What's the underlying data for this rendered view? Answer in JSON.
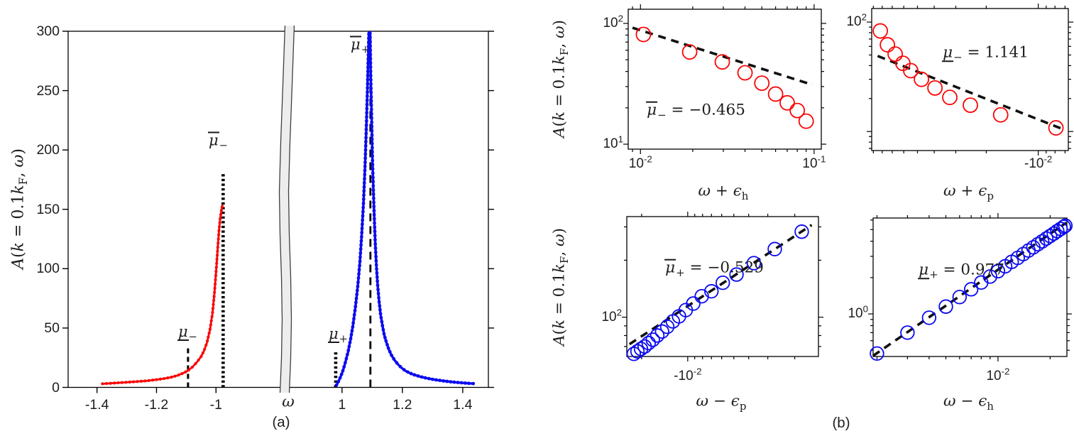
{
  "colors": {
    "background": "#ffffff",
    "axis": "#000000",
    "text": "#1e1e1e",
    "red_series": "#fa0505",
    "blue_series": "#0b0bf0",
    "fit_line": "#111111",
    "break_band_fill": "#ededed",
    "break_band_edge": "#3f3f3f"
  },
  "panel_labels": {
    "a": "(a)",
    "b": "(b)"
  },
  "chart_data": [
    {
      "id": "a-spectral-function",
      "type": "line",
      "title": "",
      "xlabel": "*ω*",
      "ylabel": "*A*(*k* = 0.1*k*_{F}, *ω*)",
      "ylim": [
        0,
        300
      ],
      "yticks": [
        {
          "v": 0,
          "label": "0"
        },
        {
          "v": 50,
          "label": "50"
        },
        {
          "v": 100,
          "label": "100"
        },
        {
          "v": 150,
          "label": "150"
        },
        {
          "v": 200,
          "label": "200"
        },
        {
          "v": 250,
          "label": "250"
        },
        {
          "v": 300,
          "label": "300"
        }
      ],
      "axis_break": true,
      "xlim_left": [
        -1.497,
        -0.774
      ],
      "xlim_right": [
        0.838,
        1.485
      ],
      "xticks": [
        {
          "v": -1.4,
          "label": "-1.4"
        },
        {
          "v": -1.2,
          "label": "-1.2"
        },
        {
          "v": -1.0,
          "label": "-1"
        },
        {
          "v": 1.0,
          "label": "1"
        },
        {
          "v": 1.2,
          "label": "1.2"
        },
        {
          "v": 1.4,
          "label": "1.4"
        }
      ],
      "grid": false,
      "series": [
        {
          "name": "hole-side-red",
          "color": "red_series",
          "points": [
            [
              -1.386,
              3
            ],
            [
              -1.35,
              3.5
            ],
            [
              -1.32,
              4
            ],
            [
              -1.29,
              4.5
            ],
            [
              -1.26,
              5
            ],
            [
              -1.23,
              5.6
            ],
            [
              -1.2,
              6.5
            ],
            [
              -1.17,
              7.6
            ],
            [
              -1.15,
              8.6
            ],
            [
              -1.13,
              10
            ],
            [
              -1.11,
              12
            ],
            [
              -1.095,
              14
            ],
            [
              -1.08,
              17
            ],
            [
              -1.065,
              21
            ],
            [
              -1.05,
              26
            ],
            [
              -1.04,
              31
            ],
            [
              -1.03,
              38
            ],
            [
              -1.02,
              49
            ],
            [
              -1.012,
              62
            ],
            [
              -1.005,
              80
            ],
            [
              -0.999,
              100
            ],
            [
              -0.994,
              118
            ],
            [
              -0.99,
              132
            ],
            [
              -0.986,
              142
            ],
            [
              -0.982,
              149
            ],
            [
              -0.978,
              154
            ]
          ]
        },
        {
          "name": "particle-side-blue",
          "color": "blue_series",
          "points": [
            [
              0.979,
              1
            ],
            [
              0.984,
              3
            ],
            [
              0.99,
              6
            ],
            [
              0.997,
              10
            ],
            [
              1.004,
              15
            ],
            [
              1.012,
              22
            ],
            [
              1.02,
              30
            ],
            [
              1.028,
              40
            ],
            [
              1.036,
              52
            ],
            [
              1.044,
              67
            ],
            [
              1.052,
              85
            ],
            [
              1.059,
              105
            ],
            [
              1.065,
              128
            ],
            [
              1.071,
              155
            ],
            [
              1.076,
              185
            ],
            [
              1.08,
              215
            ],
            [
              1.084,
              250
            ],
            [
              1.087,
              280
            ],
            [
              1.089,
              300
            ],
            [
              1.0905,
              310
            ],
            [
              1.092,
              310
            ],
            [
              1.0935,
              290
            ],
            [
              1.095,
              265
            ],
            [
              1.097,
              240
            ],
            [
              1.099,
              215
            ],
            [
              1.101,
              190
            ],
            [
              1.104,
              165
            ],
            [
              1.107,
              142
            ],
            [
              1.11,
              122
            ],
            [
              1.114,
              102
            ],
            [
              1.118,
              86
            ],
            [
              1.123,
              72
            ],
            [
              1.128,
              61
            ],
            [
              1.134,
              52
            ],
            [
              1.14,
              44
            ],
            [
              1.147,
              38
            ],
            [
              1.155,
              32
            ],
            [
              1.164,
              27
            ],
            [
              1.174,
              23
            ],
            [
              1.185,
              19.5
            ],
            [
              1.197,
              16.5
            ],
            [
              1.21,
              14
            ],
            [
              1.225,
              12
            ],
            [
              1.24,
              10.5
            ],
            [
              1.26,
              9
            ],
            [
              1.28,
              7.8
            ],
            [
              1.3,
              6.8
            ],
            [
              1.32,
              6.0
            ],
            [
              1.34,
              5.3
            ],
            [
              1.36,
              4.7
            ],
            [
              1.38,
              4.2
            ],
            [
              1.4,
              3.8
            ],
            [
              1.42,
              3.4
            ],
            [
              1.435,
              3.2
            ]
          ]
        }
      ],
      "vlines": [
        {
          "id": "mu-under-minus",
          "label": "u{*μ*}_{−}",
          "x": -1.094,
          "top": 33,
          "style": "dashed-short"
        },
        {
          "id": "mu-over-minus",
          "label": "o{*μ*}_{−}",
          "x": -0.976,
          "top": 180,
          "style": "dotted"
        },
        {
          "id": "mu-under-plus",
          "label": "u{*μ*}_{+}",
          "x": 0.979,
          "top": 30,
          "style": "dotted"
        },
        {
          "id": "mu-over-plus",
          "label": "o{*μ*}_{+}",
          "x": 1.094,
          "top": 300,
          "style": "dashed-tall"
        }
      ]
    },
    {
      "id": "b-top-left",
      "type": "scatter",
      "xscale": "log",
      "yscale": "log",
      "xlabel": "*ω* + *ϵ*_{h}",
      "ylabel": "*A*(*k* = 0.1*k*_{F}, *ω*)",
      "xlim": [
        0.0085,
        0.11
      ],
      "ylim": [
        9.1,
        131
      ],
      "xticks": [
        {
          "v": 0.01,
          "label": "10^{-2}"
        },
        {
          "v": 0.1,
          "label": "10^{-1}"
        }
      ],
      "yticks": [
        {
          "v": 10,
          "label": "10^{1}"
        },
        {
          "v": 100,
          "label": "10^{2}"
        }
      ],
      "marker": "open-circle",
      "marker_color": "red_series",
      "points": [
        [
          0.0104,
          81
        ],
        [
          0.0192,
          58
        ],
        [
          0.0296,
          48
        ],
        [
          0.04,
          39
        ],
        [
          0.05,
          32
        ],
        [
          0.06,
          26
        ],
        [
          0.07,
          22
        ],
        [
          0.08,
          19
        ],
        [
          0.09,
          15.5
        ]
      ],
      "fit_line": {
        "from": [
          0.009,
          92
        ],
        "to": [
          0.098,
          31
        ]
      },
      "annotation": "o{*μ*}_{−} = −0.465"
    },
    {
      "id": "b-top-right",
      "type": "scatter",
      "xscale": "negative-log",
      "yscale": "log",
      "xlabel": "*ω* + *ϵ*_{p}",
      "xlim": [
        -0.092,
        -0.0067
      ],
      "ylim": [
        6.7,
        133
      ],
      "xticks": [
        {
          "v": -0.01,
          "label": "-10^{-2}"
        }
      ],
      "yticks": [
        {
          "v": 100,
          "label": "10^{2}"
        }
      ],
      "marker": "open-circle",
      "marker_color": "red_series",
      "points": [
        [
          -0.082,
          83
        ],
        [
          -0.0746,
          62
        ],
        [
          -0.0673,
          51
        ],
        [
          -0.0607,
          42
        ],
        [
          -0.0547,
          36
        ],
        [
          -0.0474,
          30
        ],
        [
          -0.0396,
          25
        ],
        [
          -0.0325,
          20.5
        ],
        [
          -0.0247,
          17.4
        ],
        [
          -0.0165,
          14.2
        ],
        [
          -0.0079,
          10.8
        ]
      ],
      "fit_line": {
        "from": [
          -0.085,
          49
        ],
        "to": [
          -0.0072,
          10.5
        ]
      },
      "annotation": "u{*μ*}_{−} = 1.141"
    },
    {
      "id": "b-bottom-left",
      "type": "scatter",
      "xscale": "negative-log",
      "yscale": "log",
      "xlabel": "*ω* − *ϵ*_{p}",
      "ylabel": "*A*(*k* = 0.1*k*_{F}, *ω*)",
      "xlim": [
        -0.025,
        -0.0014
      ],
      "ylim": [
        62,
        340
      ],
      "xticks": [
        {
          "v": -0.01,
          "label": "-10^{-2}"
        }
      ],
      "yticks": [
        {
          "v": 100,
          "label": "10^{2}"
        }
      ],
      "marker": "open-circle",
      "marker_color": "blue_series",
      "points": [
        [
          -0.0225,
          64
        ],
        [
          -0.0213,
          66
        ],
        [
          -0.0202,
          68
        ],
        [
          -0.0191,
          70
        ],
        [
          -0.018,
          73
        ],
        [
          -0.0169,
          76
        ],
        [
          -0.0158,
          80
        ],
        [
          -0.0147,
          84
        ],
        [
          -0.0136,
          89
        ],
        [
          -0.0125,
          95
        ],
        [
          -0.0114,
          101
        ],
        [
          -0.0103,
          109
        ],
        [
          -0.0092,
          118
        ],
        [
          -0.0081,
          129
        ],
        [
          -0.007,
          137
        ],
        [
          -0.0059,
          152
        ],
        [
          -0.0048,
          168
        ],
        [
          -0.0037,
          193
        ],
        [
          -0.0027,
          229
        ],
        [
          -0.0018,
          283
        ]
      ],
      "fit_line": {
        "from": [
          -0.024,
          72
        ],
        "to": [
          -0.00155,
          307
        ]
      },
      "annotation": "o{*μ*}_{+} = −0.529"
    },
    {
      "id": "b-bottom-right",
      "type": "scatter",
      "xscale": "log",
      "yscale": "log",
      "xlabel": "*ω* − *ϵ*_{h}",
      "xlim": [
        0.0019,
        0.025
      ],
      "ylim": [
        0.444,
        6.23
      ],
      "xticks": [
        {
          "v": 0.01,
          "label": "10^{-2}"
        }
      ],
      "yticks": [
        {
          "v": 1,
          "label": "10^{0}"
        }
      ],
      "marker": "open-circle",
      "marker_color": "blue_series",
      "points": [
        [
          0.002,
          0.47
        ],
        [
          0.003,
          0.7
        ],
        [
          0.004,
          0.93
        ],
        [
          0.005,
          1.15
        ],
        [
          0.006,
          1.38
        ],
        [
          0.007,
          1.6
        ],
        [
          0.008,
          1.82
        ],
        [
          0.009,
          2.04
        ],
        [
          0.01,
          2.26
        ],
        [
          0.011,
          2.48
        ],
        [
          0.012,
          2.7
        ],
        [
          0.013,
          2.91
        ],
        [
          0.014,
          3.13
        ],
        [
          0.015,
          3.35
        ],
        [
          0.016,
          3.56
        ],
        [
          0.017,
          3.78
        ],
        [
          0.018,
          3.99
        ],
        [
          0.019,
          4.21
        ],
        [
          0.02,
          4.42
        ],
        [
          0.021,
          4.63
        ],
        [
          0.022,
          4.85
        ],
        [
          0.023,
          5.06
        ],
        [
          0.024,
          5.27
        ],
        [
          0.0245,
          5.38
        ]
      ],
      "fit_line": {
        "from": [
          0.0019,
          0.45
        ],
        "to": [
          0.0248,
          5.7
        ]
      },
      "annotation": "u{*μ*}_{+} = 0.977"
    }
  ]
}
